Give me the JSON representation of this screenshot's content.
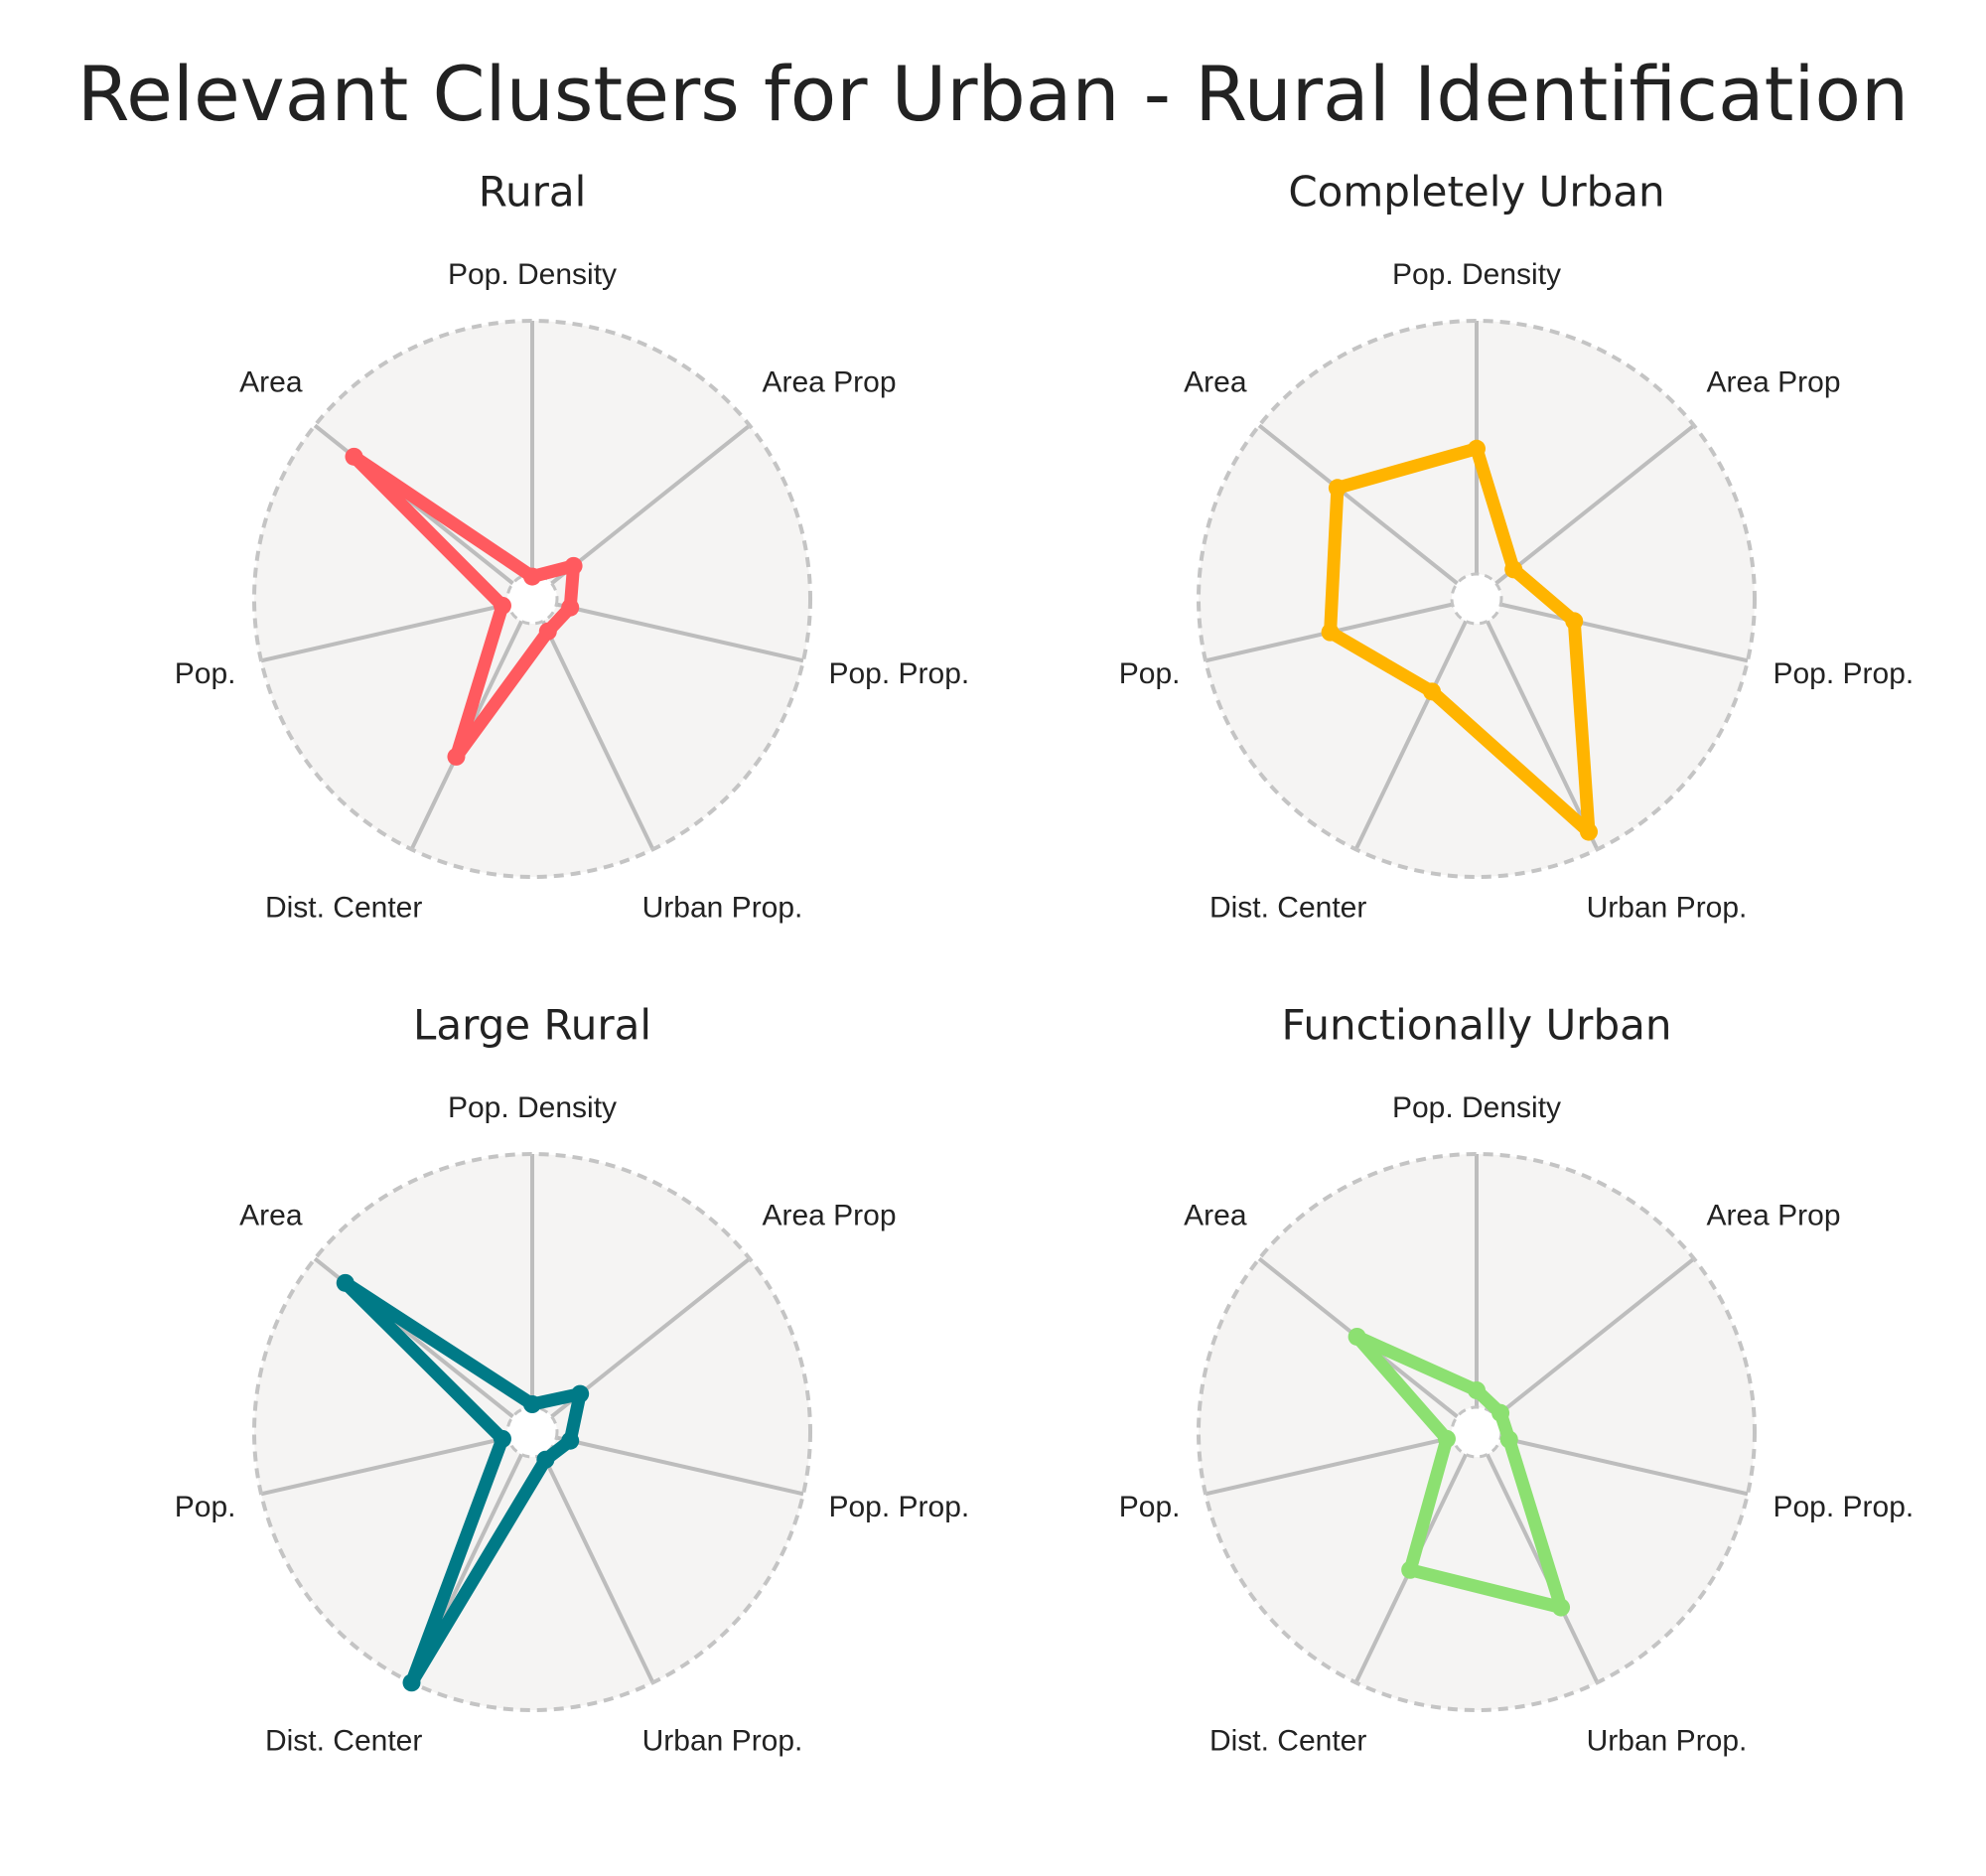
{
  "title": "Relevant Clusters for Urban - Rural Identification",
  "chart_data": [
    {
      "type": "radar",
      "title": "Rural",
      "categories": [
        "Pop. Density",
        "Area Prop",
        "Pop. Prop.",
        "Urban Prop.",
        "Dist. Center",
        "Pop.",
        "Area"
      ],
      "values": [
        0.08,
        0.19,
        0.14,
        0.13,
        0.63,
        0.11,
        0.82
      ],
      "color": "#ff5a5f",
      "ylim": [
        0,
        1
      ]
    },
    {
      "type": "radar",
      "title": "Completely Urban",
      "categories": [
        "Pop. Density",
        "Area Prop",
        "Pop. Prop.",
        "Urban Prop.",
        "Dist. Center",
        "Pop.",
        "Area"
      ],
      "values": [
        0.54,
        0.17,
        0.36,
        0.93,
        0.37,
        0.54,
        0.64
      ],
      "color": "#ffb400",
      "ylim": [
        0,
        1
      ]
    },
    {
      "type": "radar",
      "title": "Large Rural",
      "categories": [
        "Pop. Density",
        "Area Prop",
        "Pop. Prop.",
        "Urban Prop.",
        "Dist. Center",
        "Pop.",
        "Area"
      ],
      "values": [
        0.1,
        0.22,
        0.14,
        0.11,
        1.0,
        0.11,
        0.86
      ],
      "color": "#007a87",
      "ylim": [
        0,
        1
      ]
    },
    {
      "type": "radar",
      "title": "Functionally Urban",
      "categories": [
        "Pop. Density",
        "Area Prop",
        "Pop. Prop.",
        "Urban Prop.",
        "Dist. Center",
        "Pop.",
        "Area"
      ],
      "values": [
        0.15,
        0.11,
        0.12,
        0.7,
        0.55,
        0.11,
        0.55
      ],
      "color": "#8ce071",
      "ylim": [
        0,
        1
      ]
    }
  ]
}
